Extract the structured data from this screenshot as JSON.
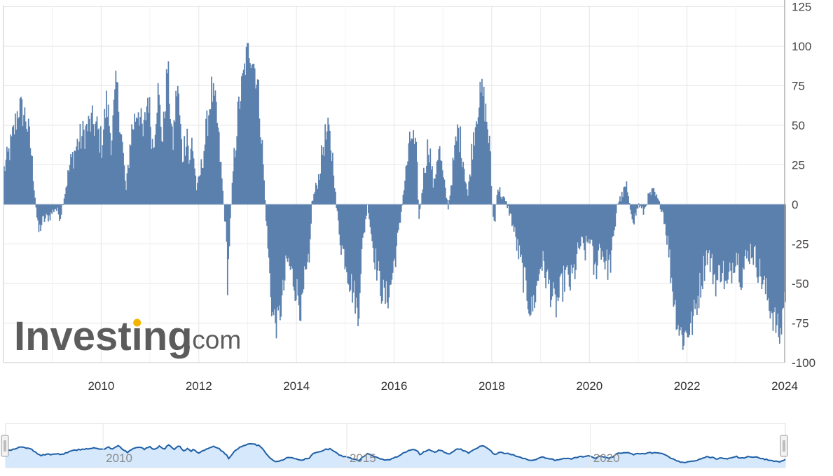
{
  "chart_data": {
    "type": "bar",
    "title": "",
    "xlabel": "",
    "ylabel": "",
    "ylim": [
      -100,
      125
    ],
    "xlim": [
      "2008-03",
      "2024-01"
    ],
    "y_ticks": [
      "125",
      "100",
      "75",
      "50",
      "25",
      "0",
      "-25",
      "-50",
      "-75",
      "-100"
    ],
    "y_tick_values": [
      125,
      100,
      75,
      50,
      25,
      0,
      -25,
      -50,
      -75,
      -100
    ],
    "x_ticks": [
      "2010",
      "2012",
      "2014",
      "2016",
      "2018",
      "2020",
      "2022",
      "2024"
    ],
    "x_tick_values": [
      2010,
      2012,
      2014,
      2016,
      2018,
      2020,
      2022,
      2024
    ],
    "grid": true,
    "y_axis_position": "right",
    "bar_color": "#5b80ad",
    "approximate_weekly_values": true,
    "keypoints": [
      [
        2008.0,
        22
      ],
      [
        2008.15,
        38
      ],
      [
        2008.3,
        62
      ],
      [
        2008.45,
        55
      ],
      [
        2008.55,
        35
      ],
      [
        2008.65,
        0
      ],
      [
        2008.7,
        -18
      ],
      [
        2008.8,
        -10
      ],
      [
        2008.95,
        -7
      ],
      [
        2009.05,
        -2
      ],
      [
        2009.1,
        -5
      ],
      [
        2009.15,
        -8
      ],
      [
        2009.2,
        0
      ],
      [
        2009.35,
        25
      ],
      [
        2009.5,
        38
      ],
      [
        2009.7,
        48
      ],
      [
        2009.8,
        52
      ],
      [
        2009.9,
        48
      ],
      [
        2010.0,
        38
      ],
      [
        2010.1,
        65
      ],
      [
        2010.2,
        40
      ],
      [
        2010.3,
        78
      ],
      [
        2010.4,
        45
      ],
      [
        2010.5,
        8
      ],
      [
        2010.6,
        45
      ],
      [
        2010.75,
        62
      ],
      [
        2010.85,
        42
      ],
      [
        2010.95,
        70
      ],
      [
        2011.05,
        35
      ],
      [
        2011.15,
        72
      ],
      [
        2011.25,
        40
      ],
      [
        2011.35,
        88
      ],
      [
        2011.45,
        35
      ],
      [
        2011.55,
        78
      ],
      [
        2011.65,
        30
      ],
      [
        2011.75,
        48
      ],
      [
        2011.8,
        22
      ],
      [
        2011.85,
        42
      ],
      [
        2011.95,
        8
      ],
      [
        2012.05,
        25
      ],
      [
        2012.15,
        48
      ],
      [
        2012.25,
        72
      ],
      [
        2012.35,
        58
      ],
      [
        2012.45,
        20
      ],
      [
        2012.5,
        0
      ],
      [
        2012.55,
        -20
      ],
      [
        2012.58,
        -50
      ],
      [
        2012.62,
        -20
      ],
      [
        2012.7,
        25
      ],
      [
        2012.8,
        60
      ],
      [
        2012.9,
        80
      ],
      [
        2013.0,
        100
      ],
      [
        2013.1,
        92
      ],
      [
        2013.2,
        75
      ],
      [
        2013.3,
        30
      ],
      [
        2013.35,
        0
      ],
      [
        2013.45,
        -50
      ],
      [
        2013.5,
        -70
      ],
      [
        2013.6,
        -76
      ],
      [
        2013.7,
        -60
      ],
      [
        2013.8,
        -35
      ],
      [
        2013.9,
        -45
      ],
      [
        2014.0,
        -55
      ],
      [
        2014.1,
        -68
      ],
      [
        2014.15,
        -50
      ],
      [
        2014.25,
        -40
      ],
      [
        2014.3,
        0
      ],
      [
        2014.45,
        18
      ],
      [
        2014.55,
        40
      ],
      [
        2014.65,
        45
      ],
      [
        2014.75,
        25
      ],
      [
        2014.8,
        0
      ],
      [
        2014.9,
        -25
      ],
      [
        2015.0,
        -35
      ],
      [
        2015.1,
        -50
      ],
      [
        2015.2,
        -60
      ],
      [
        2015.25,
        -75
      ],
      [
        2015.3,
        -40
      ],
      [
        2015.4,
        -10
      ],
      [
        2015.45,
        0
      ],
      [
        2015.55,
        -25
      ],
      [
        2015.7,
        -50
      ],
      [
        2015.8,
        -60
      ],
      [
        2015.9,
        -55
      ],
      [
        2016.0,
        -35
      ],
      [
        2016.1,
        -15
      ],
      [
        2016.15,
        0
      ],
      [
        2016.25,
        25
      ],
      [
        2016.35,
        45
      ],
      [
        2016.45,
        30
      ],
      [
        2016.5,
        -10
      ],
      [
        2016.6,
        20
      ],
      [
        2016.7,
        40
      ],
      [
        2016.8,
        10
      ],
      [
        2016.9,
        38
      ],
      [
        2017.0,
        15
      ],
      [
        2017.1,
        -2
      ],
      [
        2017.2,
        25
      ],
      [
        2017.3,
        48
      ],
      [
        2017.4,
        30
      ],
      [
        2017.5,
        5
      ],
      [
        2017.6,
        40
      ],
      [
        2017.7,
        62
      ],
      [
        2017.8,
        72
      ],
      [
        2017.9,
        50
      ],
      [
        2017.95,
        35
      ],
      [
        2018.0,
        0
      ],
      [
        2018.05,
        -15
      ],
      [
        2018.1,
        12
      ],
      [
        2018.2,
        5
      ],
      [
        2018.3,
        0
      ],
      [
        2018.4,
        -10
      ],
      [
        2018.5,
        -25
      ],
      [
        2018.6,
        -40
      ],
      [
        2018.7,
        -55
      ],
      [
        2018.8,
        -68
      ],
      [
        2018.9,
        -55
      ],
      [
        2019.0,
        -35
      ],
      [
        2019.1,
        -45
      ],
      [
        2019.2,
        -55
      ],
      [
        2019.3,
        -65
      ],
      [
        2019.4,
        -55
      ],
      [
        2019.5,
        -45
      ],
      [
        2019.6,
        -50
      ],
      [
        2019.7,
        -40
      ],
      [
        2019.8,
        -25
      ],
      [
        2019.9,
        -30
      ],
      [
        2020.0,
        -20
      ],
      [
        2020.1,
        -45
      ],
      [
        2020.2,
        -25
      ],
      [
        2020.3,
        -35
      ],
      [
        2020.4,
        -40
      ],
      [
        2020.5,
        -20
      ],
      [
        2020.55,
        0
      ],
      [
        2020.65,
        5
      ],
      [
        2020.75,
        12
      ],
      [
        2020.8,
        0
      ],
      [
        2020.9,
        -10
      ],
      [
        2021.0,
        0
      ],
      [
        2021.1,
        -5
      ],
      [
        2021.2,
        5
      ],
      [
        2021.3,
        8
      ],
      [
        2021.4,
        2
      ],
      [
        2021.5,
        -5
      ],
      [
        2021.6,
        -25
      ],
      [
        2021.7,
        -55
      ],
      [
        2021.8,
        -75
      ],
      [
        2021.9,
        -85
      ],
      [
        2022.0,
        -80
      ],
      [
        2022.1,
        -75
      ],
      [
        2022.2,
        -60
      ],
      [
        2022.3,
        -45
      ],
      [
        2022.4,
        -30
      ],
      [
        2022.5,
        -40
      ],
      [
        2022.6,
        -50
      ],
      [
        2022.7,
        -38
      ],
      [
        2022.8,
        -55
      ],
      [
        2022.9,
        -40
      ],
      [
        2023.0,
        -30
      ],
      [
        2023.1,
        -45
      ],
      [
        2023.2,
        -35
      ],
      [
        2023.3,
        -28
      ],
      [
        2023.4,
        -35
      ],
      [
        2023.5,
        -45
      ],
      [
        2023.6,
        -55
      ],
      [
        2023.7,
        -65
      ],
      [
        2023.8,
        -75
      ],
      [
        2023.9,
        -85
      ],
      [
        2023.95,
        -65
      ],
      [
        2024.0,
        -55
      ]
    ]
  },
  "watermark": {
    "brand": "Investing",
    "suffix": ".com",
    "accent_color": "#f4b300"
  },
  "navigator": {
    "labels": [
      "2010",
      "2015",
      "2020"
    ],
    "line_color": "#1f5fa6",
    "fill_color": "#d6e8fb"
  }
}
